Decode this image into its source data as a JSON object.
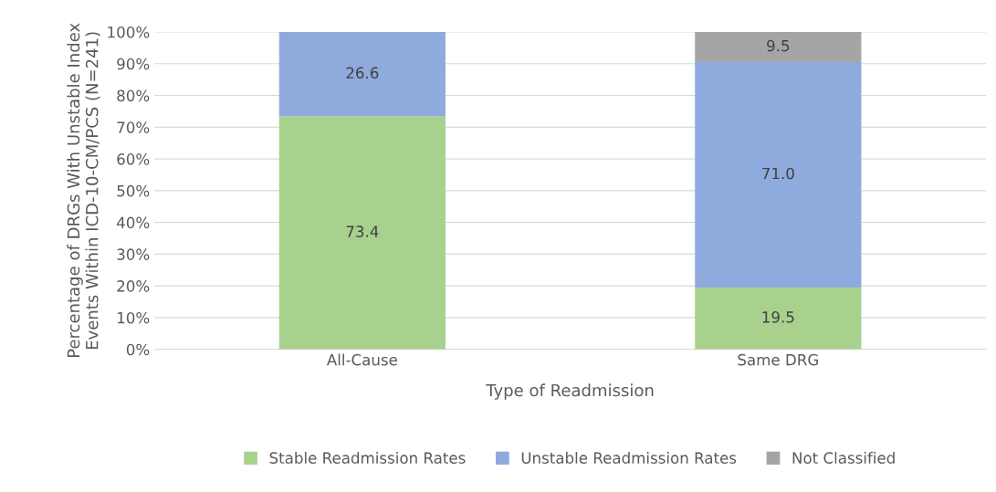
{
  "chart_data": {
    "type": "bar",
    "stacked": true,
    "categories": [
      "All-Cause",
      "Same DRG"
    ],
    "xlabel": "Type of Readmission",
    "ylabel": "Percentage of DRGs With Unstable Index Events Within ICD-10-CM/PCS (N=241)",
    "series": [
      {
        "name": "Stable Readmission Rates",
        "color": "#a9d18e",
        "values": [
          73.4,
          19.5
        ],
        "value_labels": [
          "73.4",
          "19.5"
        ]
      },
      {
        "name": "Unstable Readmission Rates",
        "color": "#8faadc",
        "values": [
          26.6,
          71.0
        ],
        "value_labels": [
          "26.6",
          "71.0"
        ]
      },
      {
        "name": "Not Classified",
        "color": "#a5a5a5",
        "values": [
          null,
          9.5
        ],
        "value_labels": [
          null,
          "9.5"
        ]
      }
    ],
    "ylim": [
      0,
      100
    ],
    "yticks": [
      {
        "value": 0,
        "label": "0%"
      },
      {
        "value": 10,
        "label": "10%"
      },
      {
        "value": 20,
        "label": "20%"
      },
      {
        "value": 30,
        "label": "30%"
      },
      {
        "value": 40,
        "label": "40%"
      },
      {
        "value": 50,
        "label": "50%"
      },
      {
        "value": 60,
        "label": "60%"
      },
      {
        "value": 70,
        "label": "70%"
      },
      {
        "value": 80,
        "label": "80%"
      },
      {
        "value": 90,
        "label": "90%"
      },
      {
        "value": 100,
        "label": "100%"
      }
    ],
    "grid": "y",
    "legend": "bottom"
  }
}
